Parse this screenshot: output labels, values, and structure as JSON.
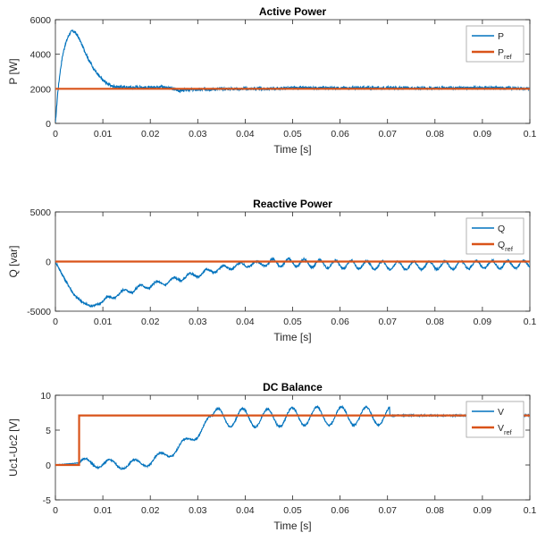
{
  "colors": {
    "blue": "#0072BD",
    "orange": "#D95319",
    "axis": "#262626",
    "legend_border": "#a0a0a0"
  },
  "chart_data": [
    {
      "type": "line",
      "title": "Active Power",
      "xlabel": "Time [s]",
      "ylabel": "P [W]",
      "xlim": [
        0,
        0.1
      ],
      "ylim": [
        0,
        6000
      ],
      "xticks": [
        0,
        0.01,
        0.02,
        0.03,
        0.04,
        0.05,
        0.06,
        0.07,
        0.08,
        0.09,
        0.1
      ],
      "xticklabels": [
        "0",
        "0.01",
        "0.02",
        "0.03",
        "0.04",
        "0.05",
        "0.06",
        "0.07",
        "0.08",
        "0.09",
        "0.1"
      ],
      "yticks": [
        0,
        2000,
        4000,
        6000
      ],
      "yticklabels": [
        "0",
        "2000",
        "4000",
        "6000"
      ],
      "grid": false,
      "legend_position": "top-right",
      "series": [
        {
          "name": "P",
          "color": "#0072BD",
          "x": [
            0,
            0.0005,
            0.001,
            0.0015,
            0.002,
            0.0025,
            0.003,
            0.0035,
            0.004,
            0.0045,
            0.005,
            0.006,
            0.007,
            0.008,
            0.009,
            0.01,
            0.011,
            0.012,
            0.014,
            0.016,
            0.018,
            0.02,
            0.022,
            0.024,
            0.026,
            0.028,
            0.03,
            0.035,
            0.04,
            0.045,
            0.05,
            0.055,
            0.06,
            0.065,
            0.07,
            0.075,
            0.08,
            0.085,
            0.09,
            0.095,
            0.1
          ],
          "y": [
            0,
            1800,
            3000,
            3900,
            4500,
            4900,
            5200,
            5350,
            5300,
            5150,
            4900,
            4300,
            3700,
            3200,
            2800,
            2500,
            2300,
            2150,
            2100,
            2080,
            2100,
            2050,
            2150,
            2050,
            1900,
            1950,
            1950,
            2000,
            2000,
            2000,
            2050,
            2050,
            2050,
            2050,
            2050,
            2050,
            2050,
            2050,
            2050,
            2050,
            2000
          ],
          "noise_amplitude": 80
        },
        {
          "name": "P_ref",
          "label_main": "P",
          "label_sub": "ref",
          "color": "#D95319",
          "x": [
            0,
            0.1
          ],
          "y": [
            2000,
            2000
          ]
        }
      ]
    },
    {
      "type": "line",
      "title": "Reactive Power",
      "xlabel": "Time [s]",
      "ylabel": "Q [var]",
      "xlim": [
        0,
        0.1
      ],
      "ylim": [
        -5000,
        5000
      ],
      "xticks": [
        0,
        0.01,
        0.02,
        0.03,
        0.04,
        0.05,
        0.06,
        0.07,
        0.08,
        0.09,
        0.1
      ],
      "xticklabels": [
        "0",
        "0.01",
        "0.02",
        "0.03",
        "0.04",
        "0.05",
        "0.06",
        "0.07",
        "0.08",
        "0.09",
        "0.1"
      ],
      "yticks": [
        -5000,
        0,
        5000
      ],
      "yticklabels": [
        "-5000",
        "0",
        "5000"
      ],
      "grid": false,
      "legend_position": "top-right",
      "series": [
        {
          "name": "Q",
          "color": "#0072BD",
          "x": [
            0,
            0.002,
            0.004,
            0.006,
            0.0075,
            0.009,
            0.011,
            0.013,
            0.015,
            0.018,
            0.021,
            0.024,
            0.027,
            0.03,
            0.033,
            0.036,
            0.04,
            0.045,
            0.05,
            0.055,
            0.06,
            0.065,
            0.07,
            0.075,
            0.08,
            0.085,
            0.09,
            0.095,
            0.1
          ],
          "y": [
            0,
            -1800,
            -3400,
            -4200,
            -4500,
            -4300,
            -3800,
            -3300,
            -3000,
            -2600,
            -2300,
            -2000,
            -1600,
            -1300,
            -900,
            -600,
            -300,
            -150,
            -100,
            -200,
            -300,
            -350,
            -400,
            -400,
            -400,
            -350,
            -300,
            -300,
            -250
          ],
          "oscillation": [
            {
              "from": 0.01,
              "to": 0.045,
              "period": 0.0035,
              "amplitude": 250
            },
            {
              "from": 0.045,
              "to": 0.1,
              "period": 0.0033,
              "amplitude": 400
            }
          ],
          "noise_amplitude": 100
        },
        {
          "name": "Q_ref",
          "label_main": "Q",
          "label_sub": "ref",
          "color": "#D95319",
          "x": [
            0,
            0.1
          ],
          "y": [
            0,
            0
          ]
        }
      ]
    },
    {
      "type": "line",
      "title": "DC Balance",
      "xlabel": "Time [s]",
      "ylabel": "Uc1-Uc2 [V]",
      "xlim": [
        0,
        0.1
      ],
      "ylim": [
        -5,
        10
      ],
      "xticks": [
        0,
        0.01,
        0.02,
        0.03,
        0.04,
        0.05,
        0.06,
        0.07,
        0.08,
        0.09,
        0.1
      ],
      "xticklabels": [
        "0",
        "0.01",
        "0.02",
        "0.03",
        "0.04",
        "0.05",
        "0.06",
        "0.07",
        "0.08",
        "0.09",
        "0.1"
      ],
      "yticks": [
        -5,
        0,
        5,
        10
      ],
      "yticklabels": [
        "-5",
        "0",
        "5",
        "10"
      ],
      "grid": false,
      "legend_position": "top-right",
      "series": [
        {
          "name": "V",
          "color": "#0072BD",
          "x": [
            0,
            0.005,
            0.007,
            0.01,
            0.015,
            0.02,
            0.025,
            0.03,
            0.033,
            0.038,
            0.045,
            0.05,
            0.055,
            0.06,
            0.065,
            0.07,
            0.0705,
            0.1
          ],
          "y": [
            0,
            0.3,
            0.3,
            0.2,
            0.0,
            0.5,
            2.0,
            4.5,
            6.8,
            6.8,
            6.7,
            6.9,
            7.0,
            7.0,
            7.0,
            7.0,
            7.1,
            7.1
          ],
          "oscillation": [
            {
              "from": 0.005,
              "to": 0.033,
              "period": 0.0052,
              "amplitude": 0.6
            },
            {
              "from": 0.033,
              "to": 0.0705,
              "period": 0.0052,
              "amplitude": 1.3
            }
          ],
          "noise_amplitude": 0.12
        },
        {
          "name": "V_ref",
          "label_main": "V",
          "label_sub": "ref",
          "color": "#D95319",
          "x": [
            0,
            0.005,
            0.005,
            0.1
          ],
          "y": [
            0,
            0,
            7.1,
            7.1
          ]
        }
      ]
    }
  ]
}
